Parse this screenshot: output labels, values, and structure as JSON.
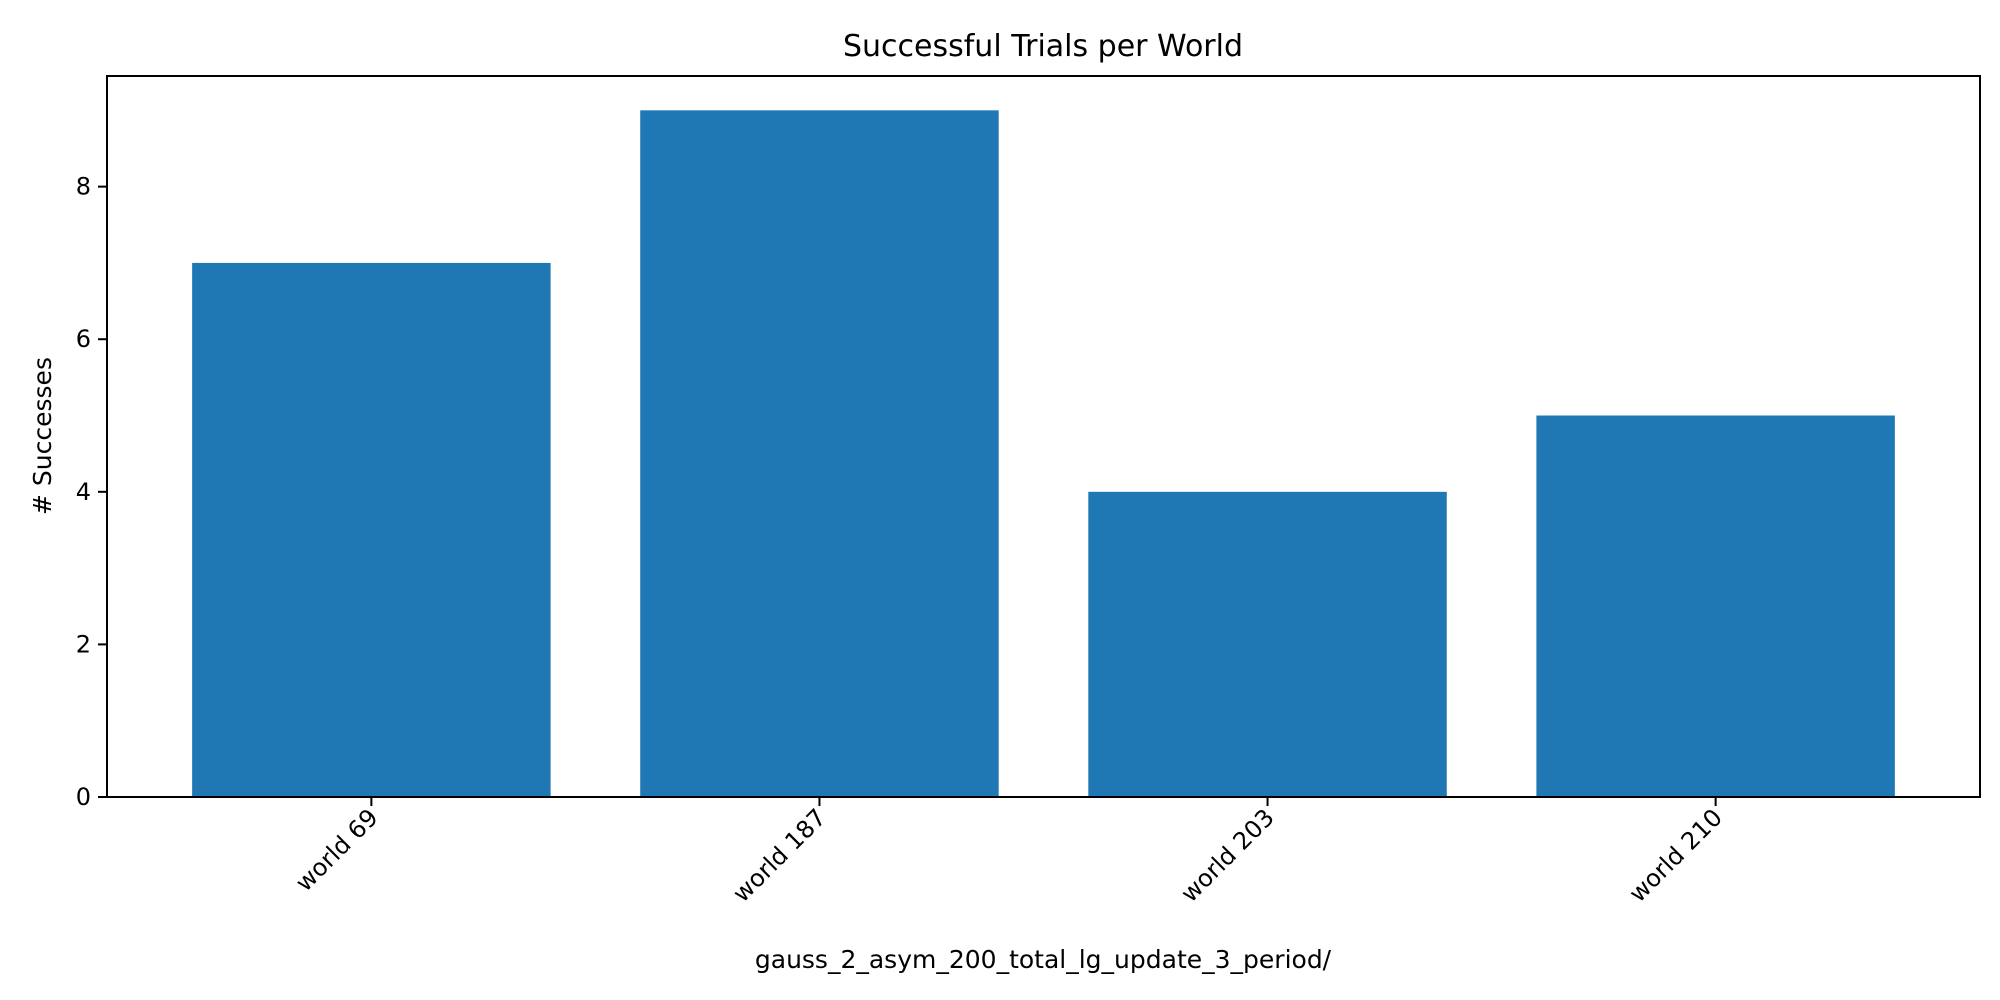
{
  "chart_data": {
    "type": "bar",
    "title": "Successful Trials per World",
    "xlabel": "gauss_2_asym_200_total_lg_update_3_period/",
    "ylabel": "# Successes",
    "categories": [
      "world 69",
      "world 187",
      "world 203",
      "world 210"
    ],
    "values": [
      7,
      9,
      4,
      5
    ],
    "ylim": [
      0,
      9.45
    ],
    "yticks": [
      0,
      2,
      4,
      6,
      8
    ],
    "bar_color": "#1f77b4",
    "grid": false,
    "legend": "none"
  }
}
